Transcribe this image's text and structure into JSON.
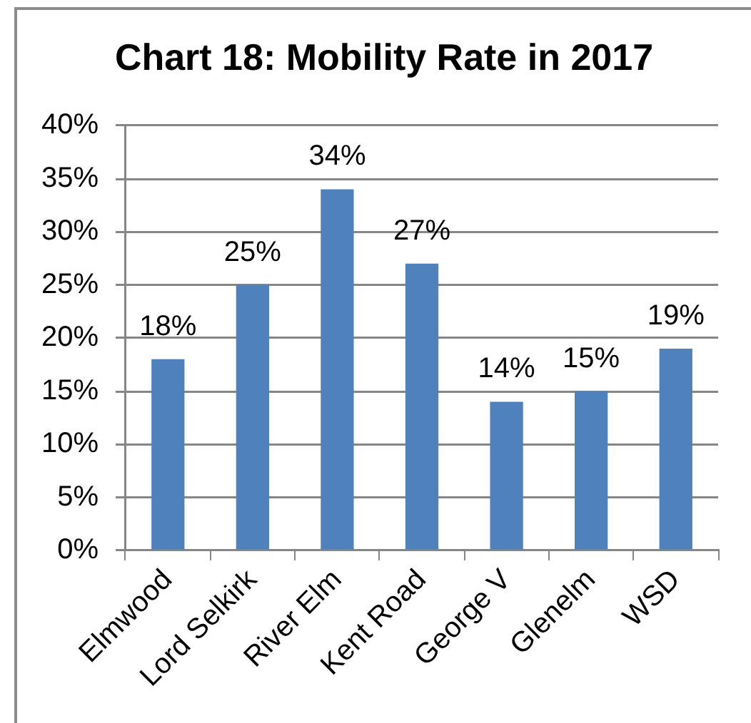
{
  "chart_data": {
    "type": "bar",
    "title": "Chart 18: Mobility Rate in 2017",
    "categories": [
      "Elmwood",
      "Lord Selkirk",
      "River Elm",
      "Kent Road",
      "George V",
      "Glenelm",
      "WSD"
    ],
    "values": [
      18,
      25,
      34,
      27,
      14,
      15,
      19
    ],
    "value_labels": [
      "18%",
      "25%",
      "34%",
      "27%",
      "14%",
      "15%",
      "19%"
    ],
    "color": "#4f81bd",
    "ylim": [
      0,
      40
    ],
    "yticks": [
      {
        "value": 0,
        "label": "0%"
      },
      {
        "value": 5,
        "label": "5%"
      },
      {
        "value": 10,
        "label": "10%"
      },
      {
        "value": 15,
        "label": "15%"
      },
      {
        "value": 20,
        "label": "20%"
      },
      {
        "value": 25,
        "label": "25%"
      },
      {
        "value": 30,
        "label": "30%"
      },
      {
        "value": 35,
        "label": "35%"
      },
      {
        "value": 40,
        "label": "40%"
      }
    ],
    "grid": "y"
  }
}
